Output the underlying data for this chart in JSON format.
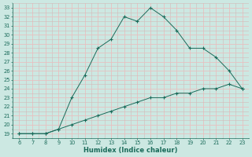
{
  "xlabel": "Humidex (Indice chaleur)",
  "x": [
    6,
    7,
    8,
    9,
    10,
    11,
    12,
    13,
    14,
    15,
    16,
    17,
    18,
    19,
    20,
    21,
    22,
    23
  ],
  "y_upper": [
    19,
    19,
    19,
    19.5,
    23,
    25.5,
    28.5,
    29.5,
    32,
    31.5,
    33,
    32,
    30.5,
    28.5,
    28.5,
    27.5,
    26,
    24
  ],
  "y_lower": [
    19,
    19,
    19,
    19.5,
    20,
    20.5,
    21,
    21.5,
    22,
    22.5,
    23,
    23,
    23.5,
    23.5,
    24,
    24,
    24.5,
    24
  ],
  "line_color": "#1a6b5a",
  "bg_color": "#cce8e2",
  "major_grid_color": "#e8c8c8",
  "minor_grid_color": "#dcdcdc",
  "xlim": [
    5.5,
    23.5
  ],
  "ylim": [
    18.5,
    33.5
  ],
  "xticks": [
    6,
    7,
    8,
    9,
    10,
    11,
    12,
    13,
    14,
    15,
    16,
    17,
    18,
    19,
    20,
    21,
    22,
    23
  ],
  "yticks": [
    19,
    20,
    21,
    22,
    23,
    24,
    25,
    26,
    27,
    28,
    29,
    30,
    31,
    32,
    33
  ],
  "tick_fontsize": 4.8,
  "label_fontsize": 6.0
}
